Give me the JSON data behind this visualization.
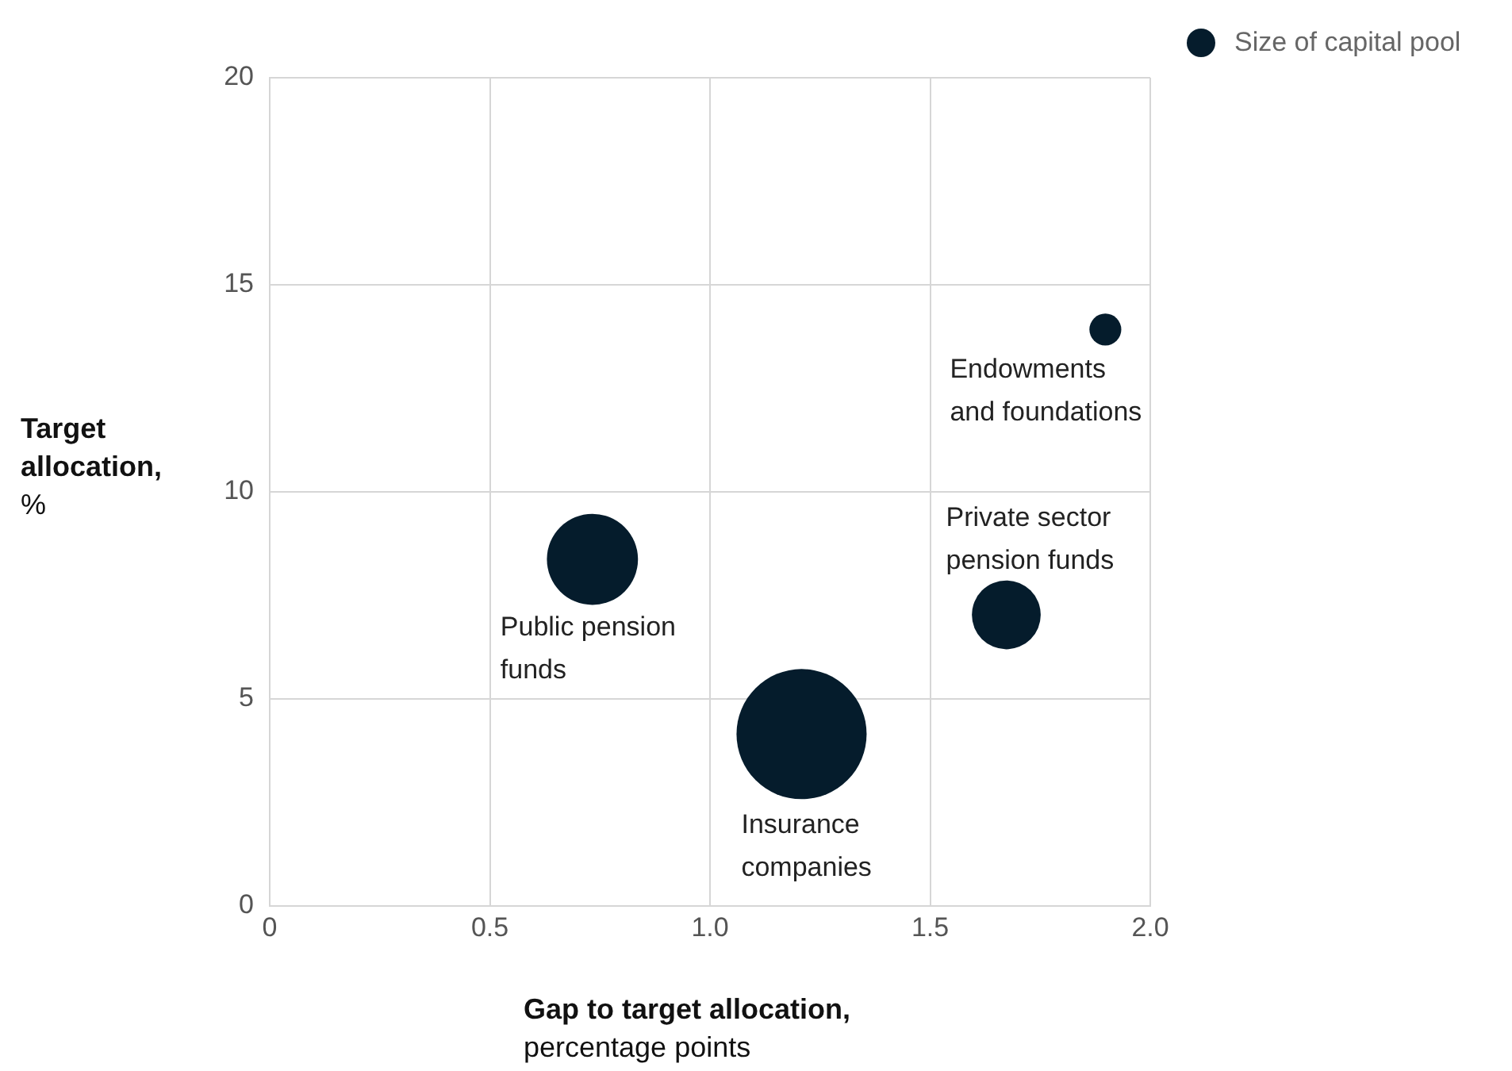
{
  "chart_data": {
    "type": "bubble",
    "xlabel": "Gap to target allocation, percentage points",
    "ylabel": "Target allocation, %",
    "x": [
      0.733,
      1.208,
      1.673,
      1.898
    ],
    "series": [
      {
        "name": "Size of capital pool",
        "color": "#051c2c",
        "values": [
          8.37,
          4.15,
          7.03,
          13.92
        ],
        "sizes": [
          0.49,
          1,
          0.28,
          0.06
        ]
      }
    ],
    "xlim": [
      0,
      2
    ],
    "xticks": [
      0,
      0.5,
      {
        "value": 1,
        "label": "1.0"
      },
      1.5,
      {
        "value": 2,
        "label": "2.0"
      }
    ],
    "ylim": [
      0,
      20
    ],
    "yticks": [
      0,
      5,
      10,
      15,
      20
    ],
    "grid": true,
    "legend": "top right",
    "annotations": [
      {
        "text": "Public pension\nfunds",
        "x": 0.733,
        "y": 8.37
      },
      {
        "text": "Insurance\ncompanies",
        "x": 1.208,
        "y": 4.15
      },
      {
        "text": "Private sector\npension funds",
        "x": 1.673,
        "y": 7.03
      },
      {
        "text": "Endowments\nand foundations",
        "x": 1.898,
        "y": 13.92
      }
    ]
  }
}
